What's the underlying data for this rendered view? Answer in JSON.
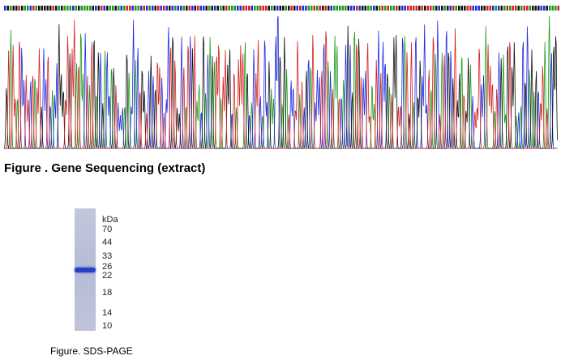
{
  "figures": [
    {
      "caption": "Figure . Gene Sequencing (extract)"
    },
    {
      "caption": "Figure. SDS-PAGE",
      "unit": "kDa",
      "markers": [
        70,
        44,
        33,
        26,
        22,
        18,
        14,
        10
      ]
    }
  ]
}
